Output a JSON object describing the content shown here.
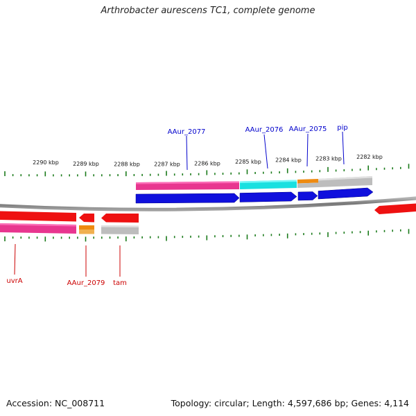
{
  "title": "Arthrobacter aurescens TC1, complete genome",
  "footer": {
    "accession": "Accession: NC_008711",
    "summary": "Topology: circular; Length: 4,597,686 bp; Genes: 4,114"
  },
  "colors": {
    "forward_label": "#0000cc",
    "reverse_label": "#cc0000",
    "tick": "#1a7a1a",
    "backbone": "#777777"
  },
  "scale_labels": [
    "2290 kbp",
    "2289 kbp",
    "2288 kbp",
    "2287 kbp",
    "2286 kbp",
    "2285 kbp",
    "2284 kbp",
    "2283 kbp",
    "2282 kbp"
  ],
  "gene_labels": {
    "aaur_2077": "AAur_2077",
    "aaur_2076": "AAur_2076",
    "aaur_2075": "AAur_2075",
    "pip": "pip",
    "uvra": "uvrA",
    "aaur_2079": "AAur_2079",
    "tam": "tam"
  }
}
